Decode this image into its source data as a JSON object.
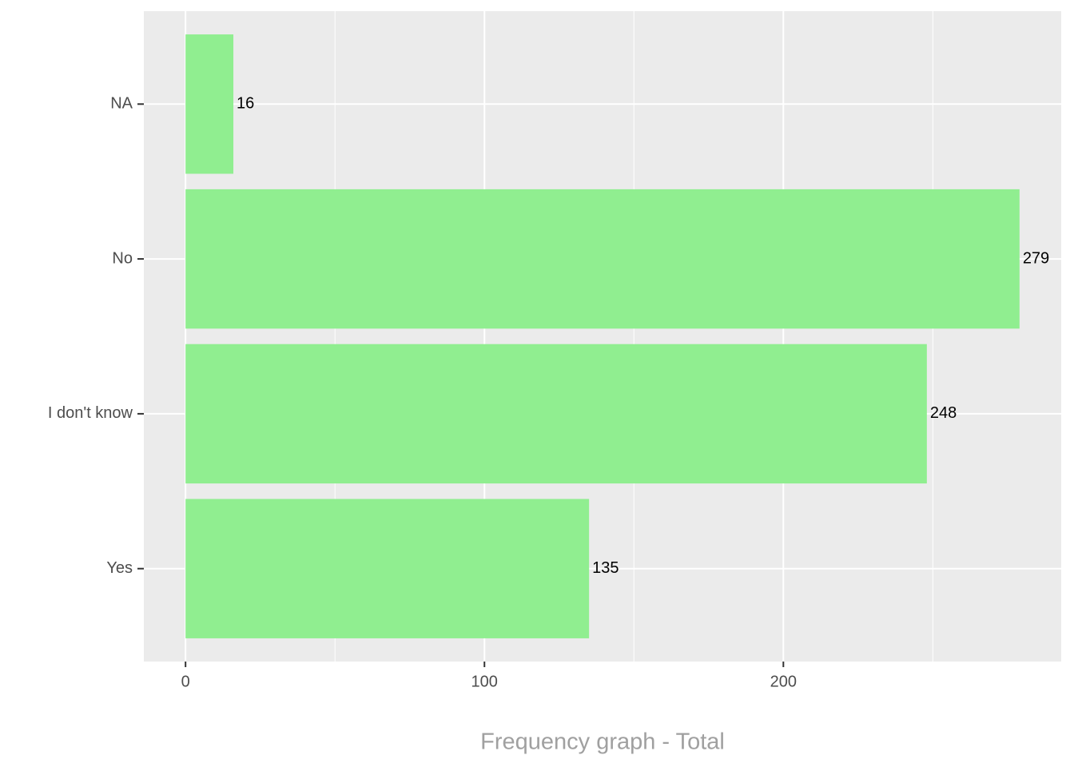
{
  "chart_data": {
    "type": "bar",
    "orientation": "horizontal",
    "x_label": "Frequency graph - Total",
    "categories": [
      "NA",
      "No",
      "I don't know",
      "Yes"
    ],
    "values": [
      16,
      279,
      248,
      135
    ],
    "color": "#90ee90",
    "xlim": [
      -13.95,
      292.95
    ],
    "xticks": [
      0,
      100,
      200
    ],
    "x_minor_gridlines": [
      50,
      150,
      250
    ],
    "grid": true,
    "data_labels": true
  }
}
